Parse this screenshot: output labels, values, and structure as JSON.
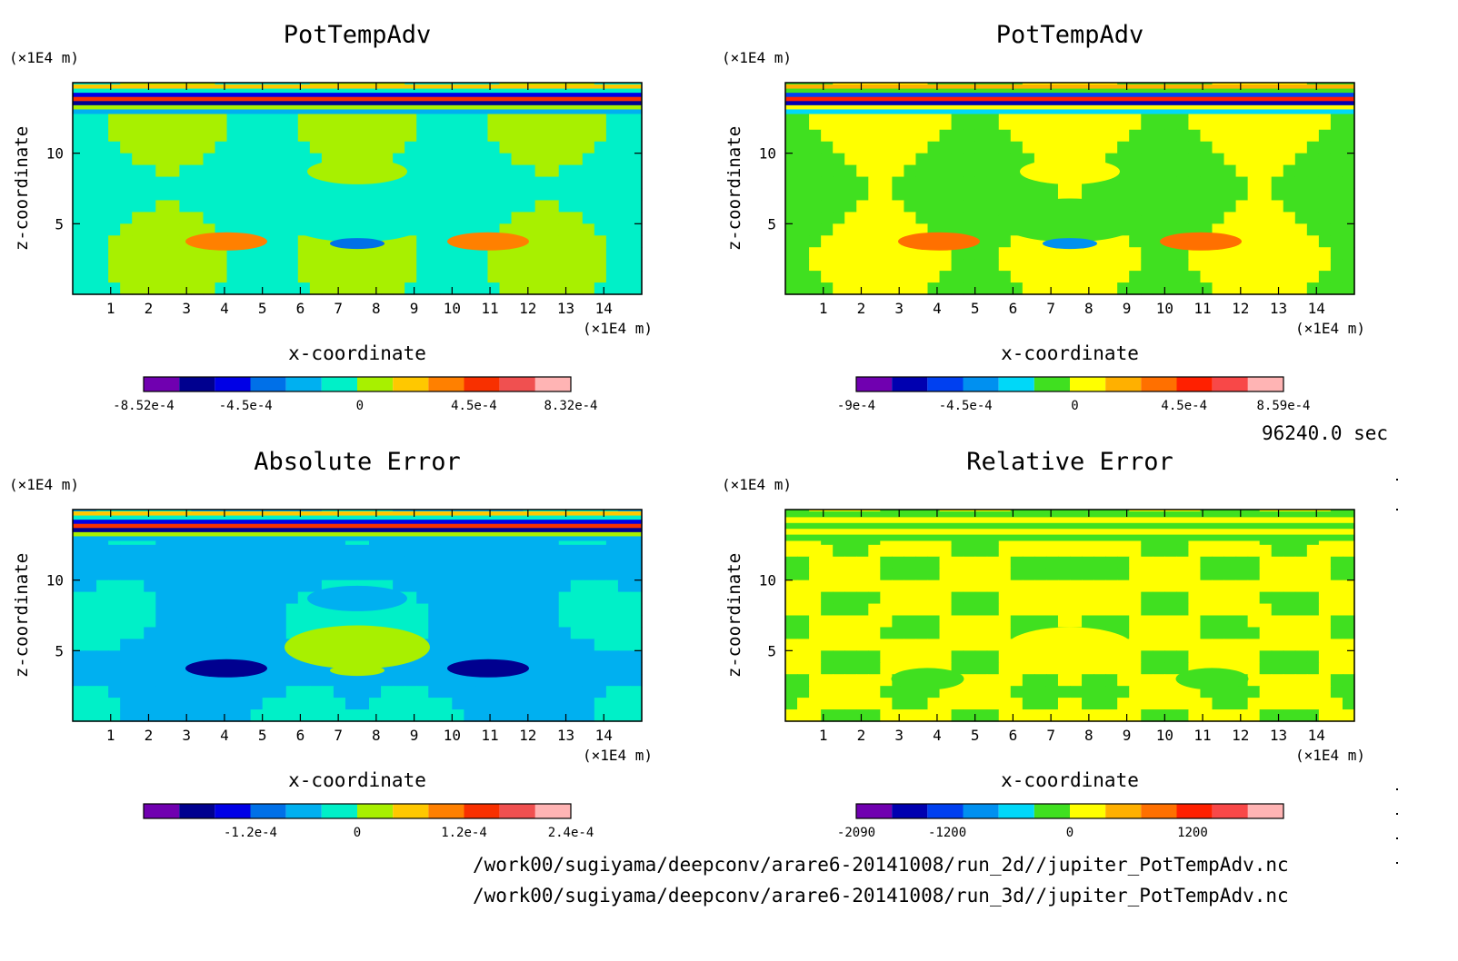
{
  "time_label": "96240.0 sec",
  "file_paths": [
    "/work00/sugiyama/deepconv/arare6-20141008/run_2d//jupiter_PotTempAdv.nc",
    "/work00/sugiyama/deepconv/arare6-20141008/run_3d//jupiter_PotTempAdv.nc"
  ],
  "chart_data": [
    {
      "type": "heatmap",
      "title": "PotTempAdv",
      "xlabel": "x-coordinate",
      "ylabel": "z-coordinate",
      "x_unit": "(×1E4 m)",
      "y_unit": "(×1E4 m)",
      "xlim": [
        0,
        15
      ],
      "ylim": [
        0,
        15
      ],
      "x_ticks": [
        1,
        2,
        3,
        4,
        5,
        6,
        7,
        8,
        9,
        10,
        11,
        12,
        13,
        14
      ],
      "y_ticks": [
        5,
        10
      ],
      "colorbar": {
        "colors": [
          "#7000b0",
          "#00008f",
          "#0000e6",
          "#0070e8",
          "#00b0f0",
          "#00f0c8",
          "#a8f000",
          "#ffc800",
          "#ff8000",
          "#f83000",
          "#f05050",
          "#ffb4b4"
        ],
        "tick_labels": [
          "-8.52e-4",
          "-4.5e-4",
          "0",
          "4.5e-4",
          "8.32e-4"
        ],
        "vmin": -0.000852,
        "vmax": 0.000832
      }
    },
    {
      "type": "heatmap",
      "title": "PotTempAdv",
      "xlabel": "x-coordinate",
      "ylabel": "z-coordinate",
      "x_unit": "(×1E4 m)",
      "y_unit": "(×1E4 m)",
      "xlim": [
        0,
        15
      ],
      "ylim": [
        0,
        15
      ],
      "x_ticks": [
        1,
        2,
        3,
        4,
        5,
        6,
        7,
        8,
        9,
        10,
        11,
        12,
        13,
        14
      ],
      "y_ticks": [
        5,
        10
      ],
      "colorbar": {
        "colors": [
          "#7000b0",
          "#0000b0",
          "#0040f0",
          "#0090f0",
          "#00d8f8",
          "#40e020",
          "#ffff00",
          "#ffb000",
          "#ff7000",
          "#ff2000",
          "#f84848",
          "#ffb4b4"
        ],
        "tick_labels": [
          "-9e-4",
          "-4.5e-4",
          "0",
          "4.5e-4",
          "8.59e-4"
        ],
        "vmin": -0.0009,
        "vmax": 0.000859
      }
    },
    {
      "type": "heatmap",
      "title": "Absolute Error",
      "xlabel": "x-coordinate",
      "ylabel": "z-coordinate",
      "x_unit": "(×1E4 m)",
      "y_unit": "(×1E4 m)",
      "xlim": [
        0,
        15
      ],
      "ylim": [
        0,
        15
      ],
      "x_ticks": [
        1,
        2,
        3,
        4,
        5,
        6,
        7,
        8,
        9,
        10,
        11,
        12,
        13,
        14
      ],
      "y_ticks": [
        5,
        10
      ],
      "colorbar": {
        "colors": [
          "#7000b0",
          "#00008f",
          "#0000e6",
          "#0070e8",
          "#00b0f0",
          "#00f0c8",
          "#a8f000",
          "#ffc800",
          "#ff8000",
          "#f83000",
          "#f05050",
          "#ffb4b4"
        ],
        "tick_labels": [
          "-1.2e-4",
          "0",
          "1.2e-4",
          "2.4e-4"
        ],
        "vmin": -0.00024,
        "vmax": 0.00024
      }
    },
    {
      "type": "heatmap",
      "title": "Relative Error",
      "xlabel": "x-coordinate",
      "ylabel": "z-coordinate",
      "x_unit": "(×1E4 m)",
      "y_unit": "(×1E4 m)",
      "xlim": [
        0,
        15
      ],
      "ylim": [
        0,
        15
      ],
      "x_ticks": [
        1,
        2,
        3,
        4,
        5,
        6,
        7,
        8,
        9,
        10,
        11,
        12,
        13,
        14
      ],
      "y_ticks": [
        5,
        10
      ],
      "colorbar": {
        "colors": [
          "#7000b0",
          "#0000b0",
          "#0040f0",
          "#0090f0",
          "#00d8f8",
          "#40e020",
          "#ffff00",
          "#ffb000",
          "#ff7000",
          "#ff2000",
          "#f84848",
          "#ffb4b4"
        ],
        "tick_labels": [
          "-2090",
          "-1200",
          "0",
          "1200"
        ],
        "vmin": -2090,
        "vmax": 2090
      }
    }
  ]
}
